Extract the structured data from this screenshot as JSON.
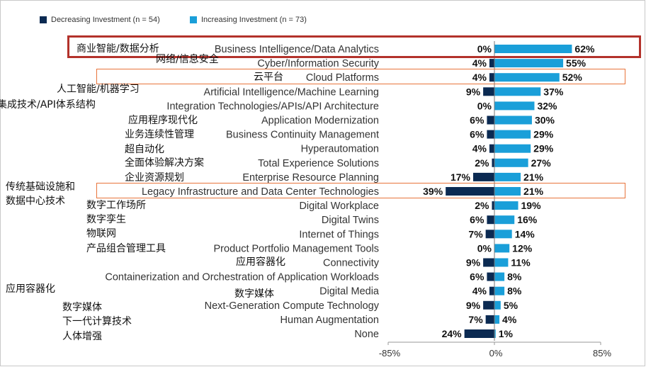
{
  "legend": [
    {
      "label": "Decreasing Investment (n = 54)",
      "color": "#0b2a52"
    },
    {
      "label": "Increasing Investment (n = 73)",
      "color": "#1a9fd9"
    }
  ],
  "chart_data": {
    "type": "bar",
    "orientation": "horizontal-diverging",
    "categories": [
      "Business Intelligence/Data Analytics",
      "Cyber/Information Security",
      "Cloud Platforms",
      "Artificial Intelligence/Machine Learning",
      "Integration Technologies/APIs/API Architecture",
      "Application Modernization",
      "Business Continuity Management",
      "Hyperautomation",
      "Total Experience Solutions",
      "Enterprise Resource Planning",
      "Legacy Infrastructure and Data Center Technologies",
      "Digital Workplace",
      "Digital Twins",
      "Internet of Things",
      "Product Portfolio Management Tools",
      "Connectivity",
      "Containerization and Orchestration of Application Workloads",
      "Digital Media",
      "Next-Generation Compute Technology",
      "Human Augmentation",
      "None"
    ],
    "series": [
      {
        "name": "Decreasing Investment (n = 54)",
        "color": "#0b2a52",
        "values": [
          0,
          4,
          4,
          9,
          0,
          6,
          6,
          4,
          2,
          17,
          39,
          2,
          6,
          7,
          0,
          9,
          6,
          4,
          9,
          7,
          24
        ]
      },
      {
        "name": "Increasing Investment (n = 73)",
        "color": "#1a9fd9",
        "values": [
          62,
          55,
          52,
          37,
          32,
          30,
          29,
          29,
          27,
          21,
          21,
          19,
          16,
          14,
          12,
          11,
          8,
          8,
          5,
          4,
          1
        ]
      }
    ],
    "xlim": [
      -85,
      85
    ],
    "xticks": [
      "-85%",
      "0%",
      "85%"
    ],
    "value_suffix": "%",
    "highlighted": [
      "Business Intelligence/Data Analytics",
      "Cloud Platforms",
      "Legacy Infrastructure and Data Center Technologies"
    ],
    "highlight_colors": [
      "#b3322b",
      "#e8743b"
    ],
    "chinese_annotations": [
      "商业智能/数据分析",
      "网络/信息安全",
      "云平台",
      "人工智能/机器学习",
      "集成技术/API体系结构",
      "应用程序现代化",
      "业务连续性管理",
      "超自动化",
      "全面体验解决方案",
      "企业资源规划",
      "传统基础设施和",
      "数据中心技术",
      "数字工作场所",
      "数字孪生",
      "物联网",
      "产品组合管理工具",
      "应用容器化",
      "应用容器化",
      "数字媒体",
      "数字媒体",
      "下一代计算技术",
      "人体增强"
    ]
  }
}
